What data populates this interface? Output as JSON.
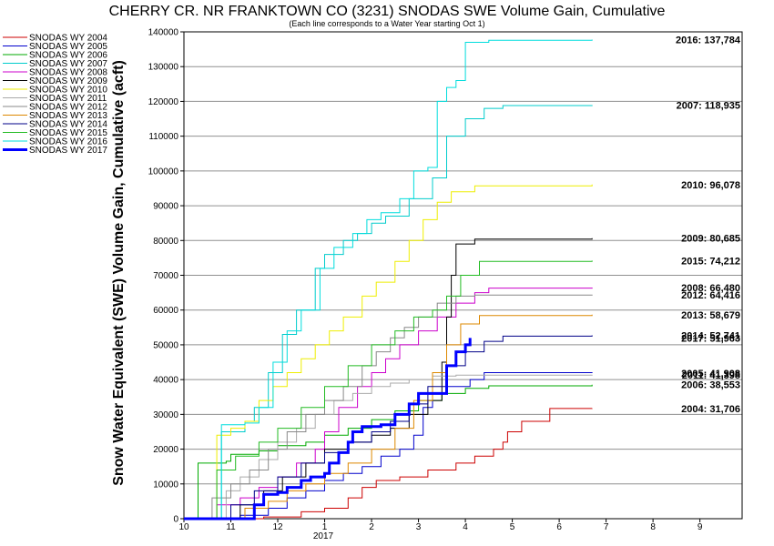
{
  "chart_data": {
    "type": "line",
    "title": "CHERRY CR. NR FRANKTOWN CO (3231) SNODAS SWE Volume Gain, Cumulative",
    "subtitle": "(Each line corresponds to a Water Year starting Oct 1)",
    "ylabel": "Snow Water Equivalent (SWE) Volume Gain, Cumulative (acft)",
    "xlabel": "",
    "x_ticks": [
      "10",
      "11",
      "12",
      "1",
      "2",
      "3",
      "4",
      "5",
      "6",
      "7",
      "8",
      "9"
    ],
    "x_year_label": "2017",
    "ylim": [
      0,
      140000
    ],
    "y_ticks": [
      0,
      10000,
      20000,
      30000,
      40000,
      50000,
      60000,
      70000,
      80000,
      90000,
      100000,
      110000,
      120000,
      130000,
      140000
    ],
    "grid": "horizontal",
    "legend_position": "left",
    "series": [
      {
        "name": "SNODAS WY 2004",
        "color": "#cc0000",
        "width": 1,
        "end_label": "2004: 31,706",
        "points": [
          [
            10.0,
            0
          ],
          [
            11.6,
            0
          ],
          [
            11.7,
            500
          ],
          [
            12.5,
            2000
          ],
          [
            13.0,
            3000
          ],
          [
            13.5,
            6000
          ],
          [
            13.8,
            9000
          ],
          [
            14.1,
            11000
          ],
          [
            14.6,
            12000
          ],
          [
            15.2,
            14000
          ],
          [
            15.8,
            16000
          ],
          [
            16.2,
            18000
          ],
          [
            16.6,
            20000
          ],
          [
            16.8,
            22000
          ],
          [
            16.9,
            25000
          ],
          [
            17.2,
            28000
          ],
          [
            17.8,
            31700
          ],
          [
            18.7,
            31706
          ]
        ]
      },
      {
        "name": "SNODAS WY 2005",
        "color": "#0000cc",
        "width": 1,
        "end_label": "2005: 41,908",
        "points": [
          [
            10.0,
            0
          ],
          [
            11.0,
            0
          ],
          [
            11.2,
            1000
          ],
          [
            11.8,
            3000
          ],
          [
            12.2,
            6000
          ],
          [
            12.6,
            8000
          ],
          [
            13.0,
            11000
          ],
          [
            13.4,
            13000
          ],
          [
            13.8,
            15000
          ],
          [
            14.2,
            18000
          ],
          [
            14.6,
            20000
          ],
          [
            14.9,
            24000
          ],
          [
            15.1,
            32000
          ],
          [
            15.3,
            36000
          ],
          [
            15.6,
            38000
          ],
          [
            16.1,
            40000
          ],
          [
            16.4,
            42000
          ],
          [
            18.7,
            41908
          ]
        ]
      },
      {
        "name": "SNODAS WY 2006",
        "color": "#00aa00",
        "width": 1,
        "end_label": "2006: 38,553",
        "points": [
          [
            10.0,
            0
          ],
          [
            10.25,
            0
          ],
          [
            10.3,
            16000
          ],
          [
            10.9,
            16500
          ],
          [
            11.0,
            18500
          ],
          [
            11.6,
            19500
          ],
          [
            12.0,
            21000
          ],
          [
            12.6,
            22000
          ],
          [
            13.0,
            24000
          ],
          [
            13.5,
            26000
          ],
          [
            14.0,
            28500
          ],
          [
            14.5,
            31000
          ],
          [
            15.0,
            34000
          ],
          [
            15.5,
            36000
          ],
          [
            16.0,
            37500
          ],
          [
            16.5,
            38200
          ],
          [
            18.7,
            38553
          ]
        ]
      },
      {
        "name": "SNODAS WY 2007",
        "color": "#00cccc",
        "width": 1,
        "end_label": "2007: 118,935",
        "points": [
          [
            10.0,
            0
          ],
          [
            10.7,
            0
          ],
          [
            10.8,
            25000
          ],
          [
            11.3,
            28000
          ],
          [
            11.5,
            32000
          ],
          [
            11.8,
            42000
          ],
          [
            12.1,
            53000
          ],
          [
            12.4,
            60000
          ],
          [
            12.8,
            72000
          ],
          [
            13.0,
            76000
          ],
          [
            13.4,
            80000
          ],
          [
            13.7,
            82000
          ],
          [
            14.0,
            85000
          ],
          [
            14.3,
            87000
          ],
          [
            14.8,
            92000
          ],
          [
            15.3,
            98000
          ],
          [
            15.6,
            110000
          ],
          [
            16.0,
            115000
          ],
          [
            16.4,
            118000
          ],
          [
            16.8,
            118800
          ],
          [
            18.7,
            118935
          ]
        ]
      },
      {
        "name": "SNODAS WY 2008",
        "color": "#cc00cc",
        "width": 1,
        "end_label": "2008: 66,480",
        "points": [
          [
            10.0,
            0
          ],
          [
            10.6,
            0
          ],
          [
            10.7,
            4000
          ],
          [
            11.2,
            6000
          ],
          [
            11.6,
            9000
          ],
          [
            12.0,
            12000
          ],
          [
            12.4,
            16000
          ],
          [
            12.8,
            20000
          ],
          [
            13.0,
            25000
          ],
          [
            13.3,
            32000
          ],
          [
            13.7,
            38000
          ],
          [
            14.0,
            42000
          ],
          [
            14.3,
            46000
          ],
          [
            14.6,
            50000
          ],
          [
            15.0,
            54000
          ],
          [
            15.4,
            58000
          ],
          [
            15.8,
            62000
          ],
          [
            16.2,
            65000
          ],
          [
            16.5,
            66300
          ],
          [
            18.7,
            66480
          ]
        ]
      },
      {
        "name": "SNODAS WY 2009",
        "color": "#000000",
        "width": 1,
        "end_label": "2009: 80,685",
        "points": [
          [
            10.0,
            0
          ],
          [
            11.1,
            0
          ],
          [
            11.2,
            4000
          ],
          [
            11.7,
            8000
          ],
          [
            12.1,
            12000
          ],
          [
            12.6,
            16000
          ],
          [
            13.0,
            20000
          ],
          [
            13.5,
            22000
          ],
          [
            14.0,
            24000
          ],
          [
            14.4,
            26000
          ],
          [
            14.8,
            30000
          ],
          [
            15.2,
            34000
          ],
          [
            15.5,
            45000
          ],
          [
            15.6,
            58000
          ],
          [
            15.7,
            70000
          ],
          [
            15.8,
            79000
          ],
          [
            16.2,
            80400
          ],
          [
            18.7,
            80685
          ]
        ]
      },
      {
        "name": "SNODAS WY 2010",
        "color": "#eeee00",
        "width": 1,
        "end_label": "2010: 96,078",
        "points": [
          [
            10.0,
            0
          ],
          [
            10.6,
            0
          ],
          [
            10.7,
            24000
          ],
          [
            11.0,
            26000
          ],
          [
            11.3,
            28000
          ],
          [
            11.6,
            34000
          ],
          [
            11.9,
            38000
          ],
          [
            12.2,
            42000
          ],
          [
            12.5,
            46000
          ],
          [
            12.8,
            50000
          ],
          [
            13.1,
            54000
          ],
          [
            13.4,
            58000
          ],
          [
            13.8,
            64000
          ],
          [
            14.1,
            68000
          ],
          [
            14.5,
            74000
          ],
          [
            14.8,
            80000
          ],
          [
            15.1,
            86000
          ],
          [
            15.4,
            91000
          ],
          [
            15.7,
            94000
          ],
          [
            16.2,
            95700
          ],
          [
            18.7,
            96078
          ]
        ]
      },
      {
        "name": "SNODAS WY 2011",
        "color": "#aaaaaa",
        "width": 1,
        "end_label": "2011: 41,398",
        "points": [
          [
            10.0,
            0
          ],
          [
            10.8,
            0
          ],
          [
            10.9,
            8000
          ],
          [
            11.2,
            12000
          ],
          [
            11.6,
            17000
          ],
          [
            12.0,
            22000
          ],
          [
            12.4,
            26000
          ],
          [
            12.8,
            30000
          ],
          [
            13.2,
            34000
          ],
          [
            13.6,
            36000
          ],
          [
            14.0,
            38000
          ],
          [
            14.4,
            39000
          ],
          [
            14.8,
            40000
          ],
          [
            15.3,
            41000
          ],
          [
            15.8,
            41300
          ],
          [
            18.7,
            41398
          ]
        ]
      },
      {
        "name": "SNODAS WY 2012",
        "color": "#888888",
        "width": 1,
        "end_label": "2012: 64,416",
        "points": [
          [
            10.0,
            0
          ],
          [
            10.5,
            0
          ],
          [
            10.6,
            6000
          ],
          [
            11.0,
            10000
          ],
          [
            11.4,
            14000
          ],
          [
            11.8,
            20000
          ],
          [
            12.2,
            25000
          ],
          [
            12.6,
            30000
          ],
          [
            13.0,
            34000
          ],
          [
            13.4,
            38000
          ],
          [
            13.8,
            44000
          ],
          [
            14.1,
            48000
          ],
          [
            14.4,
            52000
          ],
          [
            14.7,
            55000
          ],
          [
            15.0,
            58000
          ],
          [
            15.4,
            62000
          ],
          [
            15.8,
            64000
          ],
          [
            16.2,
            64300
          ],
          [
            18.7,
            64416
          ]
        ]
      },
      {
        "name": "SNODAS WY 2013",
        "color": "#dd8800",
        "width": 1,
        "end_label": "2013: 58,679",
        "points": [
          [
            10.0,
            0
          ],
          [
            11.2,
            0
          ],
          [
            11.3,
            3000
          ],
          [
            11.8,
            5000
          ],
          [
            12.2,
            8000
          ],
          [
            12.6,
            10000
          ],
          [
            13.0,
            13000
          ],
          [
            13.5,
            16000
          ],
          [
            14.0,
            20000
          ],
          [
            14.5,
            26000
          ],
          [
            14.9,
            34000
          ],
          [
            15.3,
            42000
          ],
          [
            15.6,
            50000
          ],
          [
            15.9,
            56000
          ],
          [
            16.3,
            58400
          ],
          [
            18.7,
            58679
          ]
        ]
      },
      {
        "name": "SNODAS WY 2014",
        "color": "#000088",
        "width": 1,
        "end_label": "2014: 52,741",
        "points": [
          [
            10.0,
            0
          ],
          [
            10.9,
            0
          ],
          [
            11.0,
            4000
          ],
          [
            11.5,
            8000
          ],
          [
            12.0,
            12000
          ],
          [
            12.5,
            16000
          ],
          [
            13.0,
            19000
          ],
          [
            13.5,
            22000
          ],
          [
            14.0,
            25000
          ],
          [
            14.4,
            28000
          ],
          [
            14.8,
            33000
          ],
          [
            15.2,
            38000
          ],
          [
            15.6,
            44000
          ],
          [
            16.0,
            48000
          ],
          [
            16.4,
            51000
          ],
          [
            16.8,
            52500
          ],
          [
            18.7,
            52741
          ]
        ]
      },
      {
        "name": "SNODAS WY 2015",
        "color": "#22bb22",
        "width": 1,
        "end_label": "2015: 74,212",
        "points": [
          [
            10.0,
            0
          ],
          [
            10.6,
            0
          ],
          [
            10.7,
            14000
          ],
          [
            11.1,
            18000
          ],
          [
            11.6,
            22000
          ],
          [
            12.0,
            26000
          ],
          [
            12.5,
            32000
          ],
          [
            13.0,
            38000
          ],
          [
            13.5,
            44000
          ],
          [
            14.0,
            50000
          ],
          [
            14.5,
            54000
          ],
          [
            14.9,
            58000
          ],
          [
            15.3,
            60000
          ],
          [
            15.6,
            64000
          ],
          [
            15.9,
            70000
          ],
          [
            16.3,
            74000
          ],
          [
            18.7,
            74212
          ]
        ]
      },
      {
        "name": "SNODAS WY 2016",
        "color": "#00dddd",
        "width": 1,
        "end_label": "2016: 137,784",
        "points": [
          [
            10.0,
            0
          ],
          [
            10.7,
            0
          ],
          [
            10.8,
            27000
          ],
          [
            11.3,
            27500
          ],
          [
            11.6,
            32000
          ],
          [
            11.9,
            45000
          ],
          [
            12.2,
            54000
          ],
          [
            12.5,
            60000
          ],
          [
            12.9,
            72000
          ],
          [
            13.2,
            78000
          ],
          [
            13.6,
            82000
          ],
          [
            13.9,
            86000
          ],
          [
            14.2,
            88000
          ],
          [
            14.6,
            92000
          ],
          [
            14.9,
            100000
          ],
          [
            15.2,
            101000
          ],
          [
            15.4,
            120000
          ],
          [
            15.6,
            124000
          ],
          [
            15.8,
            126000
          ],
          [
            16.0,
            137000
          ],
          [
            16.5,
            137600
          ],
          [
            18.7,
            137784
          ]
        ]
      },
      {
        "name": "SNODAS WY 2017",
        "color": "#0000ff",
        "width": 3,
        "end_label": "2017: 51,963",
        "points": [
          [
            10.0,
            0
          ],
          [
            11.4,
            0
          ],
          [
            11.5,
            4000
          ],
          [
            11.7,
            7000
          ],
          [
            12.0,
            7500
          ],
          [
            12.2,
            9000
          ],
          [
            12.5,
            11000
          ],
          [
            12.7,
            12000
          ],
          [
            13.0,
            13000
          ],
          [
            13.1,
            16000
          ],
          [
            13.3,
            19000
          ],
          [
            13.5,
            22000
          ],
          [
            13.6,
            25000
          ],
          [
            13.8,
            26500
          ],
          [
            14.2,
            27000
          ],
          [
            14.5,
            30000
          ],
          [
            14.8,
            33000
          ],
          [
            15.0,
            36000
          ],
          [
            15.5,
            36000
          ],
          [
            15.6,
            44000
          ],
          [
            15.8,
            48000
          ],
          [
            16.0,
            50000
          ],
          [
            16.1,
            51963
          ]
        ]
      }
    ]
  }
}
